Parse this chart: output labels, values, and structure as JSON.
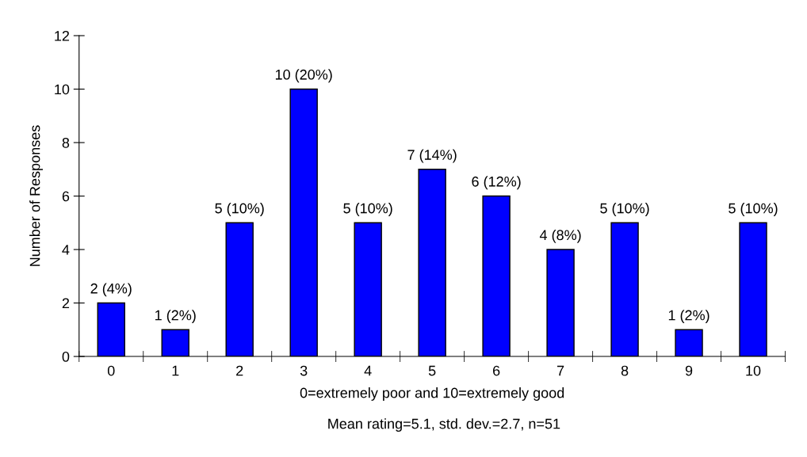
{
  "chart_data": {
    "type": "bar",
    "ylabel": "Number of Responses",
    "xlabel": "0=extremely poor and 10=extremely good",
    "categories": [
      "0",
      "1",
      "2",
      "3",
      "4",
      "5",
      "6",
      "7",
      "8",
      "9",
      "10"
    ],
    "values": [
      2,
      1,
      5,
      10,
      5,
      7,
      6,
      4,
      5,
      1,
      5
    ],
    "value_labels": [
      "2 (4%)",
      "1 (2%)",
      "5 (10%)",
      "10 (20%)",
      "5 (10%)",
      "7 (14%)",
      "6 (12%)",
      "4 (8%)",
      "5 (10%)",
      "1 (2%)",
      "5 (10%)"
    ],
    "color": "#0000ff",
    "ylim": [
      0,
      12
    ],
    "yticks": [
      0,
      2,
      4,
      6,
      8,
      10,
      12
    ],
    "grid": false,
    "annotations": [
      "Mean rating=5.1, std. dev.=2.7, n=51"
    ]
  }
}
